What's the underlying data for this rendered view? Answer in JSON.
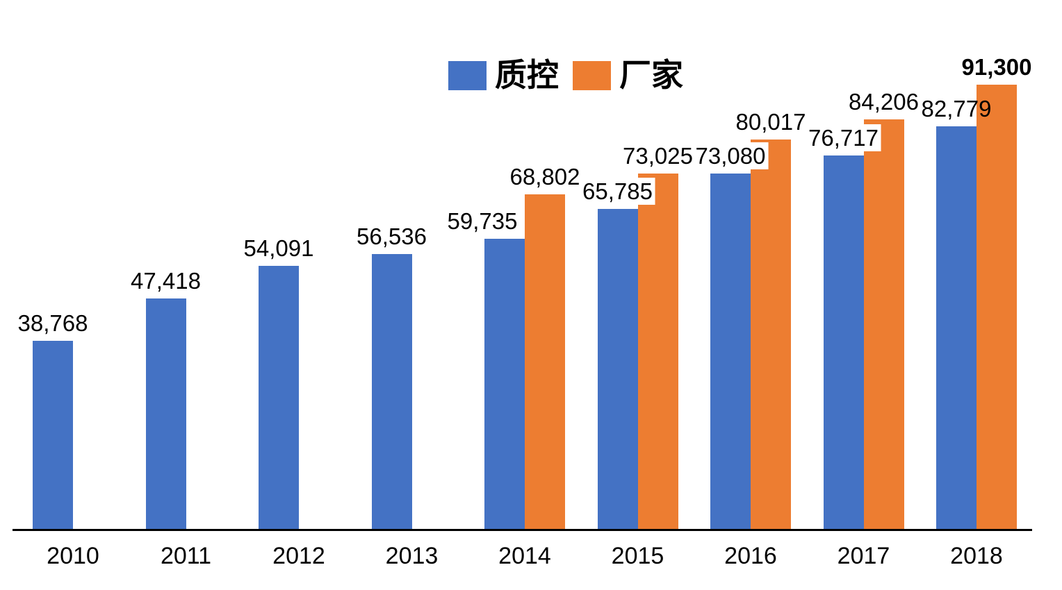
{
  "chart_data": {
    "type": "bar",
    "title": "",
    "categories": [
      "2010",
      "2011",
      "2012",
      "2013",
      "2014",
      "2015",
      "2016",
      "2017",
      "2018"
    ],
    "series": [
      {
        "name": "质控",
        "color": "#4472C4",
        "values": [
          38768,
          47418,
          54091,
          56536,
          59735,
          65785,
          73080,
          76717,
          82779
        ],
        "labels": [
          "38,768",
          "47,418",
          "54,091",
          "56,536",
          "59,735",
          "65,785",
          "73,080",
          "76,717",
          "82,779"
        ]
      },
      {
        "name": "厂家",
        "color": "#ED7D31",
        "values": [
          null,
          null,
          null,
          null,
          68802,
          73025,
          80017,
          84206,
          91300
        ],
        "labels": [
          null,
          null,
          null,
          null,
          "68,802",
          "73,025",
          "80,017",
          "84,206",
          "91,300"
        ],
        "bold_label_index": 8
      }
    ],
    "ylim": [
      0,
      95000
    ],
    "grid": false,
    "legend_position": "top",
    "axis_line_color": "#000000",
    "label_color": "#000000"
  }
}
